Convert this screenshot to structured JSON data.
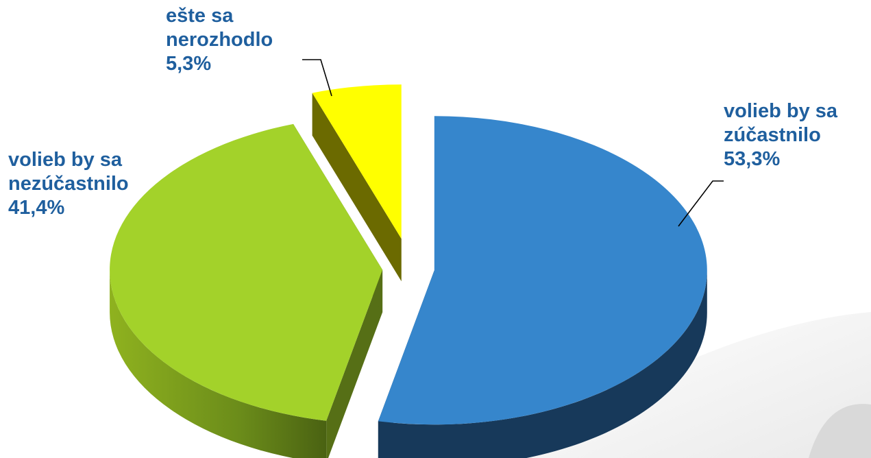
{
  "chart_data": {
    "type": "pie",
    "three_d": true,
    "exploded": true,
    "slices": [
      {
        "label_lines": [
          "volieb by sa",
          "zúčastnilo"
        ],
        "value_label": "53,3%",
        "value": 53.3,
        "color": "#3686cc",
        "side_color": "#17395a"
      },
      {
        "label_lines": [
          "volieb by sa",
          "nezúčastnilo"
        ],
        "value_label": "41,4%",
        "value": 41.4,
        "color": "#a3d22a",
        "side_color": "#566f16"
      },
      {
        "label_lines": [
          "ešte sa",
          "nerozhodlo"
        ],
        "value_label": "5,3%",
        "value": 5.3,
        "color": "#ffff00",
        "side_color": "#6b6a00"
      }
    ]
  }
}
